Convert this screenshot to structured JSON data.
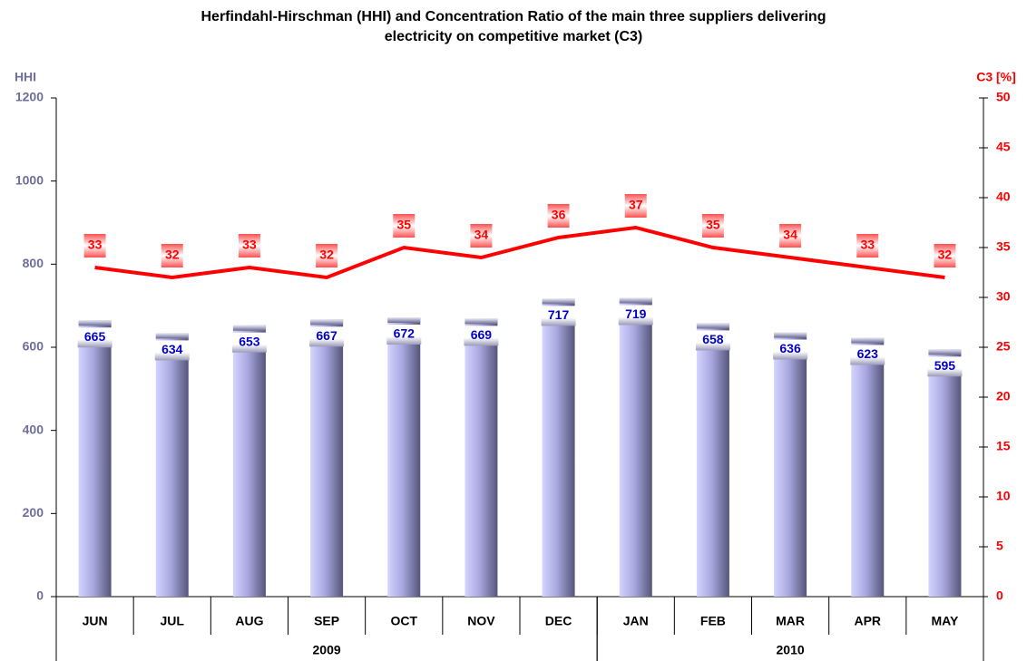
{
  "chart_data": {
    "type": "bar_line",
    "title": "Herfindahl-Hirschman (HHI) and Concentration Ratio of the main three suppliers delivering electricity on competitive market (C3)",
    "ylabel": "HHI",
    "y2label": "C3 [%]",
    "categories": [
      "JUN",
      "JUL",
      "AUG",
      "SEP",
      "OCT",
      "NOV",
      "DEC",
      "JAN",
      "FEB",
      "MAR",
      "APR",
      "MAY"
    ],
    "year_groups": [
      {
        "label": "2009",
        "count": 7
      },
      {
        "label": "2010",
        "count": 5
      }
    ],
    "series": [
      {
        "name": "HHI",
        "type": "bar",
        "color": "#a8a8e0",
        "values": [
          665,
          634,
          653,
          667,
          672,
          669,
          717,
          719,
          658,
          636,
          623,
          595
        ]
      },
      {
        "name": "C3",
        "type": "line",
        "axis": "y2",
        "color": "#ff0000",
        "values": [
          33,
          32,
          33,
          32,
          35,
          34,
          36,
          37,
          35,
          34,
          33,
          32
        ]
      }
    ],
    "ylim": [
      0,
      1200
    ],
    "yticks": [
      0,
      200,
      400,
      600,
      800,
      1000,
      1200
    ],
    "y2lim": [
      0,
      50
    ],
    "y2ticks": [
      0,
      5,
      10,
      15,
      20,
      25,
      30,
      35,
      40,
      45,
      50
    ]
  }
}
